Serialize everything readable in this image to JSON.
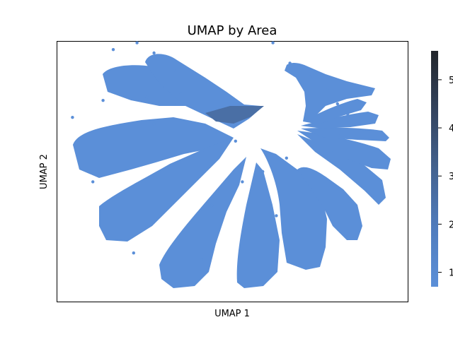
{
  "chart_data": {
    "type": "scatter",
    "title": "UMAP by Area",
    "xlabel": "UMAP 1",
    "ylabel": "UMAP 2",
    "x_ticks_shown": false,
    "y_ticks_shown": false,
    "grid": false,
    "legend": "none",
    "point_color": "#5b8fd8",
    "colorbar": {
      "placement": "right",
      "colormap": [
        "#5b8fd8",
        "#4a6fa5",
        "#3b4f6e",
        "#2a3140",
        "#22262b"
      ],
      "range": [
        0.7,
        5.6
      ],
      "ticks": [
        {
          "value": 1,
          "label": "1"
        },
        {
          "value": 2,
          "label": "2"
        },
        {
          "value": 3,
          "label": "3"
        },
        {
          "value": 4,
          "label": "4"
        },
        {
          "value": 5,
          "label": "5"
        }
      ]
    },
    "series": [
      {
        "values_note_free": true,
        "points": [
          {
            "x": -7.0,
            "y": 7.2
          },
          {
            "x": -5.6,
            "y": 7.6
          },
          {
            "x": -4.6,
            "y": 7.0
          },
          {
            "x": -3.4,
            "y": 6.0
          },
          {
            "x": -9.4,
            "y": 3.2
          },
          {
            "x": -7.6,
            "y": 4.2
          },
          {
            "x": -5.0,
            "y": 4.4
          },
          {
            "x": -3.0,
            "y": 4.6
          },
          {
            "x": -8.2,
            "y": -0.6
          },
          {
            "x": -6.4,
            "y": 1.6
          },
          {
            "x": -4.6,
            "y": 2.8
          },
          {
            "x": -3.4,
            "y": 4.0
          },
          {
            "x": -5.8,
            "y": -4.8
          },
          {
            "x": -4.4,
            "y": -2.6
          },
          {
            "x": -2.8,
            "y": -0.4
          },
          {
            "x": -1.6,
            "y": 1.2
          },
          {
            "x": -1.8,
            "y": -5.2
          },
          {
            "x": -1.2,
            "y": -2.0
          },
          {
            "x": -0.6,
            "y": 1.4
          },
          {
            "x": 1.0,
            "y": -3.4
          },
          {
            "x": 0.6,
            "y": -0.6
          },
          {
            "x": 0.2,
            "y": 1.8
          },
          {
            "x": 2.6,
            "y": -2.6
          },
          {
            "x": 1.8,
            "y": 0.0
          },
          {
            "x": 4.6,
            "y": -1.0
          },
          {
            "x": 3.2,
            "y": 0.8
          },
          {
            "x": 2.4,
            "y": 7.6
          },
          {
            "x": 3.4,
            "y": 6.4
          },
          {
            "x": 4.6,
            "y": 5.6
          },
          {
            "x": 5.6,
            "y": 4.8
          },
          {
            "x": 6.2,
            "y": 4.0
          },
          {
            "x": 6.8,
            "y": 3.4
          },
          {
            "x": 6.4,
            "y": 2.2
          },
          {
            "x": 5.8,
            "y": 1.2
          }
        ]
      }
    ]
  }
}
